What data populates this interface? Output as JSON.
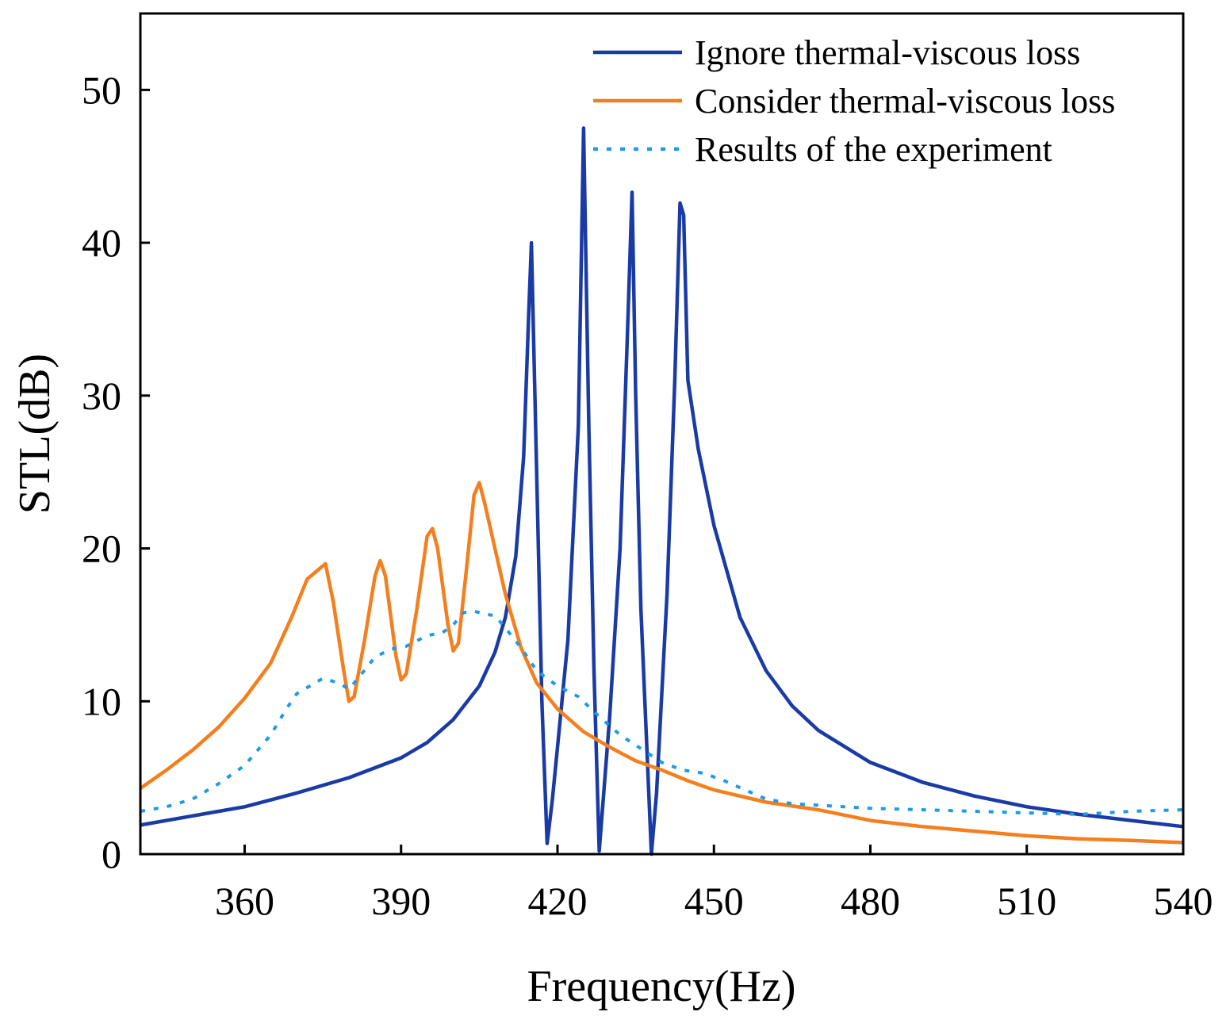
{
  "chart_data": {
    "type": "line",
    "title": "",
    "xlabel": "Frequency(Hz)",
    "ylabel": "STL(dB)",
    "xlim": [
      340,
      540
    ],
    "ylim": [
      0,
      55
    ],
    "xticks": [
      360,
      390,
      420,
      450,
      480,
      510,
      540
    ],
    "yticks": [
      0,
      10,
      20,
      30,
      40,
      50
    ],
    "grid": false,
    "legend_position": "top-right",
    "series": [
      {
        "name": "Ignore thermal-viscous loss",
        "color": "#1a3aa6",
        "style": "solid",
        "points": [
          [
            340,
            1.9
          ],
          [
            350,
            2.5
          ],
          [
            360,
            3.1
          ],
          [
            370,
            4.0
          ],
          [
            380,
            5.0
          ],
          [
            390,
            6.3
          ],
          [
            395,
            7.3
          ],
          [
            400,
            8.8
          ],
          [
            405,
            11.0
          ],
          [
            408,
            13.2
          ],
          [
            410,
            15.5
          ],
          [
            412,
            19.5
          ],
          [
            413.5,
            26.0
          ],
          [
            414.5,
            35.5
          ],
          [
            415,
            40.0
          ],
          [
            416,
            25.0
          ],
          [
            417,
            10.0
          ],
          [
            418,
            0.7
          ],
          [
            419,
            3.5
          ],
          [
            420,
            7.0
          ],
          [
            422,
            14.0
          ],
          [
            424,
            28.0
          ],
          [
            425,
            47.5
          ],
          [
            426,
            28.0
          ],
          [
            427,
            12.0
          ],
          [
            428,
            0.2
          ],
          [
            430,
            9.0
          ],
          [
            432,
            20.0
          ],
          [
            433.5,
            35.0
          ],
          [
            434.3,
            43.3
          ],
          [
            435,
            30.0
          ],
          [
            436,
            16.0
          ],
          [
            438,
            0.0
          ],
          [
            439,
            4.0
          ],
          [
            441,
            17.0
          ],
          [
            442.5,
            31.0
          ],
          [
            443.5,
            42.6
          ],
          [
            444.2,
            41.8
          ],
          [
            445,
            31.0
          ],
          [
            447,
            26.5
          ],
          [
            450,
            21.5
          ],
          [
            455,
            15.5
          ],
          [
            460,
            12.0
          ],
          [
            465,
            9.7
          ],
          [
            470,
            8.1
          ],
          [
            480,
            6.0
          ],
          [
            490,
            4.7
          ],
          [
            500,
            3.8
          ],
          [
            510,
            3.1
          ],
          [
            520,
            2.6
          ],
          [
            530,
            2.2
          ],
          [
            540,
            1.8
          ]
        ]
      },
      {
        "name": "Consider thermal-viscous loss",
        "color": "#f47f1f",
        "style": "solid",
        "points": [
          [
            340,
            4.3
          ],
          [
            345,
            5.5
          ],
          [
            350,
            6.8
          ],
          [
            355,
            8.3
          ],
          [
            360,
            10.2
          ],
          [
            365,
            12.5
          ],
          [
            369,
            15.5
          ],
          [
            372,
            18.0
          ],
          [
            375.5,
            19.0
          ],
          [
            377,
            16.5
          ],
          [
            379,
            12.0
          ],
          [
            380,
            10.0
          ],
          [
            381,
            10.3
          ],
          [
            383,
            14.0
          ],
          [
            385,
            18.2
          ],
          [
            386,
            19.2
          ],
          [
            387,
            18.2
          ],
          [
            389,
            13.0
          ],
          [
            390,
            11.4
          ],
          [
            391,
            11.8
          ],
          [
            393,
            16.0
          ],
          [
            395,
            20.8
          ],
          [
            396,
            21.3
          ],
          [
            397,
            20.0
          ],
          [
            399,
            15.0
          ],
          [
            400,
            13.3
          ],
          [
            401,
            13.8
          ],
          [
            402.5,
            18.5
          ],
          [
            404,
            23.5
          ],
          [
            405,
            24.3
          ],
          [
            406,
            23.0
          ],
          [
            408,
            20.0
          ],
          [
            410,
            17.0
          ],
          [
            413,
            13.5
          ],
          [
            416,
            11.2
          ],
          [
            420,
            9.5
          ],
          [
            425,
            8.0
          ],
          [
            430,
            7.0
          ],
          [
            435,
            6.1
          ],
          [
            440,
            5.5
          ],
          [
            445,
            4.8
          ],
          [
            450,
            4.2
          ],
          [
            460,
            3.4
          ],
          [
            470,
            2.9
          ],
          [
            480,
            2.2
          ],
          [
            490,
            1.8
          ],
          [
            500,
            1.5
          ],
          [
            510,
            1.2
          ],
          [
            520,
            1.0
          ],
          [
            530,
            0.9
          ],
          [
            540,
            0.75
          ]
        ]
      },
      {
        "name": "Results of the experiment",
        "color": "#1e9be8",
        "style": "dotted",
        "points": [
          [
            340,
            2.8
          ],
          [
            345,
            3.1
          ],
          [
            350,
            3.6
          ],
          [
            355,
            4.6
          ],
          [
            360,
            5.8
          ],
          [
            365,
            7.8
          ],
          [
            368,
            9.5
          ],
          [
            370,
            10.5
          ],
          [
            373,
            11.1
          ],
          [
            375,
            11.5
          ],
          [
            378,
            11.2
          ],
          [
            380,
            10.8
          ],
          [
            382,
            11.6
          ],
          [
            385,
            12.9
          ],
          [
            388,
            13.4
          ],
          [
            391,
            13.6
          ],
          [
            395,
            14.3
          ],
          [
            398,
            14.5
          ],
          [
            400,
            15.0
          ],
          [
            402,
            15.8
          ],
          [
            404,
            15.9
          ],
          [
            406,
            15.7
          ],
          [
            408,
            15.6
          ],
          [
            410,
            14.8
          ],
          [
            413,
            13.5
          ],
          [
            416,
            12.0
          ],
          [
            420,
            11.0
          ],
          [
            424,
            10.3
          ],
          [
            428,
            9.0
          ],
          [
            432,
            7.8
          ],
          [
            436,
            6.9
          ],
          [
            440,
            6.0
          ],
          [
            444,
            5.5
          ],
          [
            448,
            5.3
          ],
          [
            452,
            4.8
          ],
          [
            456,
            4.2
          ],
          [
            460,
            3.6
          ],
          [
            465,
            3.3
          ],
          [
            470,
            3.2
          ],
          [
            475,
            3.1
          ],
          [
            480,
            3.0
          ],
          [
            490,
            2.9
          ],
          [
            500,
            2.8
          ],
          [
            510,
            2.7
          ],
          [
            520,
            2.6
          ],
          [
            530,
            2.8
          ],
          [
            540,
            2.9
          ]
        ]
      }
    ]
  }
}
